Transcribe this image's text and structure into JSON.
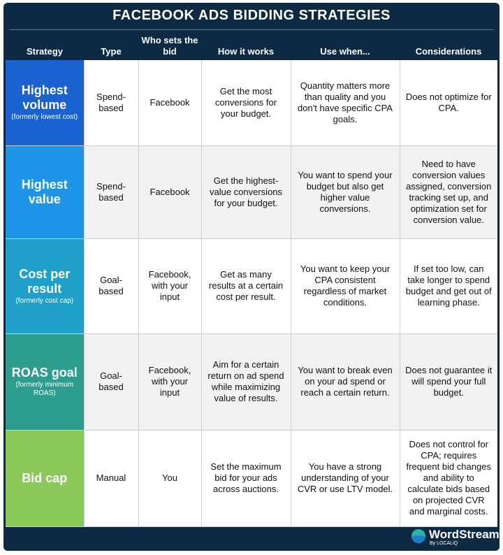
{
  "title": "FACEBOOK ADS BIDDING STRATEGIES",
  "headers": [
    "Strategy",
    "Type",
    "Who sets the bid",
    "How it works",
    "Use when...",
    "Considerations"
  ],
  "rows": [
    {
      "name": "Highest volume",
      "note": "(formerly lowest cost)",
      "color": "#1a62cf",
      "type": "Spend-based",
      "who": "Facebook",
      "how": "Get the most conversions for your budget.",
      "use": "Quantity matters more than quality and you don't have specific CPA goals.",
      "considerations": "Does not optimize for CPA."
    },
    {
      "name": "Highest value",
      "note": "",
      "color": "#1f95e8",
      "type": "Spend-based",
      "who": "Facebook",
      "how": "Get the highest-value conversions for your budget.",
      "use": "You want to spend your budget but also get higher value conversions.",
      "considerations": "Need to have conversion values assigned, conversion tracking set up, and optimization set for conversion value."
    },
    {
      "name": "Cost per result",
      "note": "(formerly cost cap)",
      "color": "#1fa0c8",
      "type": "Goal-based",
      "who": "Facebook, with your input",
      "how": "Get as many results at a certain cost per result.",
      "use": "You want to keep your CPA consistent regardless of market conditions.",
      "considerations": "If set too low, can take longer to spend budget and get out of learning phase."
    },
    {
      "name": "ROAS goal",
      "note": "(formerly minimum ROAS)",
      "color": "#2d9d8e",
      "type": "Goal-based",
      "who": "Facebook, with your input",
      "how": "Aim for a certain return on ad spend while maximizing value of results.",
      "use": "You want to break even on your ad spend or reach a certain return.",
      "considerations": "Does not guarantee it will spend your full budget."
    },
    {
      "name": "Bid cap",
      "note": "",
      "color": "#8bc95a",
      "type": "Manual",
      "who": "You",
      "how": "Set the maximum bid for your ads across auctions.",
      "use": "You have a strong understanding of your CVR or use LTV model.",
      "considerations": "Does not control for CPA; requires frequent bid changes and ability to calculate bids based on projected CVR and marginal costs."
    }
  ],
  "logo": {
    "text": "WordStream",
    "by": "By LOCALiQ"
  }
}
